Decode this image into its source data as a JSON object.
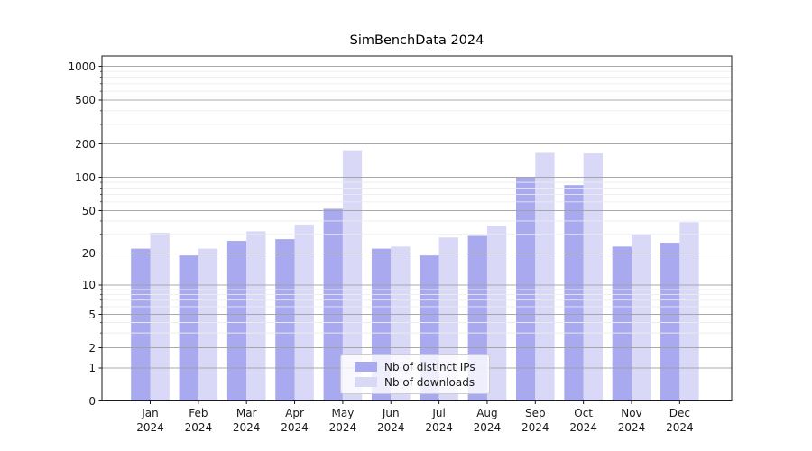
{
  "title": "SimBenchData 2024",
  "chart_data": {
    "type": "bar",
    "title": "SimBenchData 2024",
    "categories": [
      "Jan",
      "Feb",
      "Mar",
      "Apr",
      "May",
      "Jun",
      "Jul",
      "Aug",
      "Sep",
      "Oct",
      "Nov",
      "Dec"
    ],
    "x_sublabel": "2024",
    "series": [
      {
        "name": "Nb of distinct IPs",
        "color": "#a9a9f0",
        "values": [
          22,
          19,
          26,
          27,
          52,
          22,
          19,
          29,
          100,
          85,
          23,
          25
        ]
      },
      {
        "name": "Nb of downloads",
        "color": "#d9d9f7",
        "values": [
          31,
          22,
          32,
          37,
          175,
          23,
          28,
          36,
          166,
          164,
          30,
          39
        ]
      }
    ],
    "yscale": "symlog",
    "y_ticks": [
      0,
      1,
      2,
      5,
      10,
      20,
      50,
      100,
      200,
      500,
      1000
    ],
    "y_minor_ticks": [
      3,
      4,
      6,
      7,
      8,
      9,
      30,
      40,
      60,
      70,
      80,
      90,
      300,
      400,
      600,
      700,
      800,
      900
    ],
    "grid": true,
    "legend_position": "lower center",
    "colors": {
      "major_grid": "rgba(160,160,160,0.9)",
      "minor_grid": "rgba(236,236,236,0.95)",
      "spine": "#1a1a1a"
    }
  }
}
